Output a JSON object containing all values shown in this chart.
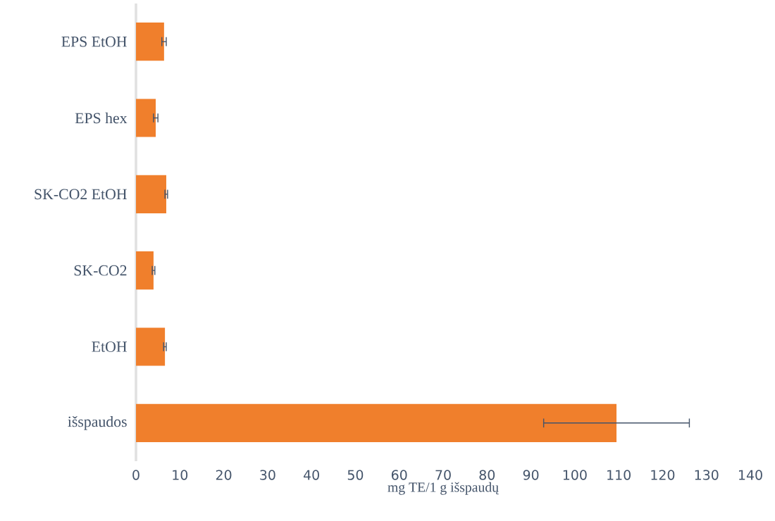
{
  "chart_data": {
    "type": "bar",
    "orientation": "horizontal",
    "xlabel": "mg TE/1 g išspaudų",
    "categories": [
      "EPS EtOH",
      "EPS hex",
      "SK-CO2 EtOH",
      "SK-CO2",
      "EtOH",
      "išspaudos"
    ],
    "values": [
      6.4,
      4.5,
      6.9,
      4.0,
      6.6,
      109.5
    ],
    "errors": [
      0.5,
      0.5,
      0.3,
      0.3,
      0.3,
      16.6
    ],
    "color": "#f07f2c",
    "xlim": [
      0,
      140
    ],
    "xticks": [
      0,
      10,
      20,
      30,
      40,
      50,
      60,
      70,
      80,
      90,
      100,
      110,
      120,
      130,
      140
    ],
    "grid": false
  }
}
